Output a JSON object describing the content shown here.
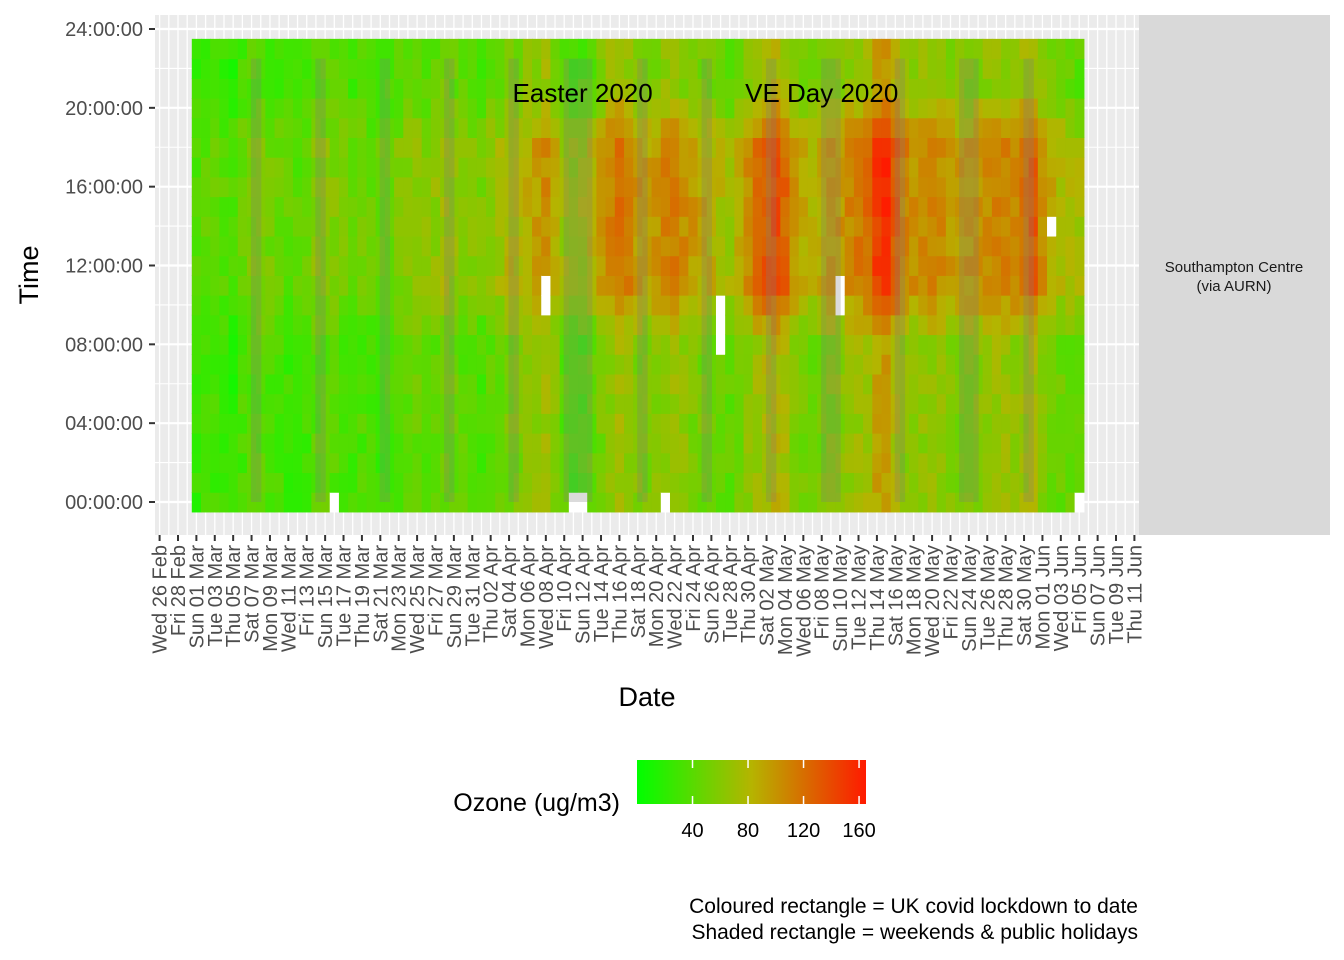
{
  "chart_data": {
    "type": "heatmap",
    "xlabel": "Date",
    "ylabel": "Time",
    "y_ticks": [
      "00:00:00",
      "04:00:00",
      "08:00:00",
      "12:00:00",
      "16:00:00",
      "20:00:00",
      "24:00:00"
    ],
    "x_ticks": [
      "Wed 26 Feb",
      "Fri 28 Feb",
      "Sun 01 Mar",
      "Tue 03 Mar",
      "Thu 05 Mar",
      "Sat 07 Mar",
      "Mon 09 Mar",
      "Wed 11 Mar",
      "Fri 13 Mar",
      "Sun 15 Mar",
      "Tue 17 Mar",
      "Thu 19 Mar",
      "Sat 21 Mar",
      "Mon 23 Mar",
      "Wed 25 Mar",
      "Fri 27 Mar",
      "Sun 29 Mar",
      "Tue 31 Mar",
      "Thu 02 Apr",
      "Sat 04 Apr",
      "Mon 06 Apr",
      "Wed 08 Apr",
      "Fri 10 Apr",
      "Sun 12 Apr",
      "Tue 14 Apr",
      "Thu 16 Apr",
      "Sat 18 Apr",
      "Mon 20 Apr",
      "Wed 22 Apr",
      "Fri 24 Apr",
      "Sun 26 Apr",
      "Tue 28 Apr",
      "Thu 30 Apr",
      "Sat 02 May",
      "Mon 04 May",
      "Wed 06 May",
      "Fri 08 May",
      "Sun 10 May",
      "Tue 12 May",
      "Thu 14 May",
      "Sat 16 May",
      "Mon 18 May",
      "Wed 20 May",
      "Fri 22 May",
      "Sun 24 May",
      "Tue 26 May",
      "Thu 28 May",
      "Sat 30 May",
      "Mon 01 Jun",
      "Wed 03 Jun",
      "Fri 05 Jun",
      "Sun 07 Jun",
      "Tue 09 Jun",
      "Thu 11 Jun"
    ],
    "x_range": [
      "2020-02-26",
      "2020-06-12"
    ],
    "data_range": [
      "2020-03-01",
      "2020-06-05"
    ],
    "y_range_hours": [
      0,
      24
    ],
    "facet_label_line1": "Southampton Centre",
    "facet_label_line2": "(via AURN)",
    "annotations": [
      "Easter 2020",
      "VE Day 2020"
    ],
    "annotation_dates": [
      "2020-04-12",
      "2020-05-08"
    ],
    "shaded_periods": [
      [
        "2020-03-07",
        "2020-03-08"
      ],
      [
        "2020-03-14",
        "2020-03-15"
      ],
      [
        "2020-03-21",
        "2020-03-22"
      ],
      [
        "2020-03-28",
        "2020-03-29"
      ],
      [
        "2020-04-04",
        "2020-04-05"
      ],
      [
        "2020-04-10",
        "2020-04-13"
      ],
      [
        "2020-04-18",
        "2020-04-19"
      ],
      [
        "2020-04-25",
        "2020-04-26"
      ],
      [
        "2020-05-02",
        "2020-05-03"
      ],
      [
        "2020-05-08",
        "2020-05-10"
      ],
      [
        "2020-05-16",
        "2020-05-17"
      ],
      [
        "2020-05-23",
        "2020-05-25"
      ],
      [
        "2020-05-30",
        "2020-05-31"
      ]
    ],
    "legend_title": "Ozone (ug/m3)",
    "legend_ticks": [
      40,
      80,
      120,
      160
    ],
    "legend_range": [
      0,
      165
    ],
    "legend_position": "bottom",
    "colour_low": "#00ff00",
    "colour_mid": "#b5b400",
    "colour_high": "#ff1a00",
    "colour_missing": "#ffffff",
    "grid": true,
    "daily_afternoon_peak_ug_m3": [
      38,
      42,
      45,
      40,
      36,
      50,
      55,
      58,
      52,
      48,
      44,
      40,
      46,
      60,
      62,
      58,
      55,
      50,
      52,
      48,
      45,
      50,
      56,
      62,
      66,
      60,
      64,
      70,
      68,
      62,
      58,
      56,
      66,
      72,
      80,
      84,
      90,
      96,
      104,
      88,
      70,
      64,
      72,
      80,
      94,
      110,
      118,
      112,
      98,
      92,
      100,
      108,
      112,
      104,
      96,
      90,
      84,
      78,
      72,
      90,
      104,
      118,
      130,
      138,
      124,
      100,
      86,
      82,
      88,
      96,
      100,
      108,
      114,
      120,
      148,
      158,
      130,
      110,
      102,
      108,
      110,
      104,
      100,
      96,
      98,
      102,
      104,
      112,
      110,
      108,
      118,
      130,
      100,
      90,
      80,
      78,
      72
    ],
    "nightly_low_ug_m3": [
      22,
      24,
      26,
      20,
      16,
      28,
      30,
      34,
      30,
      26,
      22,
      18,
      24,
      34,
      36,
      32,
      30,
      26,
      30,
      24,
      20,
      28,
      32,
      36,
      40,
      34,
      38,
      42,
      40,
      36,
      30,
      28,
      36,
      40,
      44,
      46,
      50,
      54,
      60,
      48,
      30,
      18,
      22,
      30,
      40,
      50,
      54,
      52,
      46,
      40,
      44,
      50,
      54,
      48,
      42,
      40,
      38,
      34,
      32,
      40,
      48,
      54,
      60,
      64,
      56,
      44,
      38,
      36,
      40,
      44,
      46,
      50,
      54,
      56,
      72,
      78,
      60,
      50,
      46,
      50,
      52,
      48,
      46,
      44,
      46,
      48,
      50,
      54,
      52,
      50,
      56,
      62,
      46,
      40,
      36,
      34,
      30
    ],
    "missing_cells": [
      [
        "2020-03-16",
        "00:00:00"
      ],
      [
        "2020-04-08",
        "10:00:00"
      ],
      [
        "2020-04-08",
        "11:00:00"
      ],
      [
        "2020-04-11",
        "00:00:00"
      ],
      [
        "2020-04-12",
        "00:00:00"
      ],
      [
        "2020-04-21",
        "00:00:00"
      ],
      [
        "2020-04-27",
        "08:00:00"
      ],
      [
        "2020-04-27",
        "09:00:00"
      ],
      [
        "2020-04-27",
        "10:00:00"
      ],
      [
        "2020-05-10",
        "10:00:00"
      ],
      [
        "2020-05-10",
        "11:00:00"
      ],
      [
        "2020-06-02",
        "14:00:00"
      ],
      [
        "2020-06-05",
        "00:00:00"
      ]
    ]
  },
  "footnote_line1": "Coloured rectangle = UK covid lockdown to date",
  "footnote_line2": "Shaded rectangle = weekends & public holidays"
}
